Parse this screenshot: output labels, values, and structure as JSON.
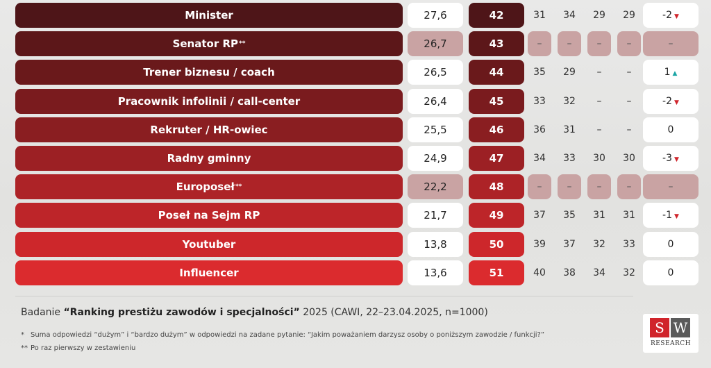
{
  "chart_data": {
    "type": "table",
    "rows": [
      {
        "name": "Minister",
        "sup": "",
        "score": "27,6",
        "rank": "42",
        "history": [
          "31",
          "34",
          "29",
          "29"
        ],
        "change": "-2",
        "trend": "down",
        "is_new": false,
        "color": "#4e1518"
      },
      {
        "name": "Senator RP",
        "sup": "**",
        "score": "26,7",
        "rank": "43",
        "history": [
          "–",
          "–",
          "–",
          "–"
        ],
        "change": "–",
        "trend": "",
        "is_new": true,
        "color": "#5c1719"
      },
      {
        "name": "Trener biznesu / coach",
        "sup": "",
        "score": "26,5",
        "rank": "44",
        "history": [
          "35",
          "29",
          "–",
          "–"
        ],
        "change": "1",
        "trend": "up",
        "is_new": false,
        "color": "#6a191b"
      },
      {
        "name": "Pracownik infolinii / call-center",
        "sup": "",
        "score": "26,4",
        "rank": "45",
        "history": [
          "33",
          "32",
          "–",
          "–"
        ],
        "change": "-2",
        "trend": "down",
        "is_new": false,
        "color": "#7a1b1e"
      },
      {
        "name": "Rekruter / HR-owiec",
        "sup": "",
        "score": "25,5",
        "rank": "46",
        "history": [
          "36",
          "31",
          "–",
          "–"
        ],
        "change": "0",
        "trend": "",
        "is_new": false,
        "color": "#8a1e21"
      },
      {
        "name": "Radny gminny",
        "sup": "",
        "score": "24,9",
        "rank": "47",
        "history": [
          "34",
          "33",
          "30",
          "30"
        ],
        "change": "-3",
        "trend": "down",
        "is_new": false,
        "color": "#9c2024"
      },
      {
        "name": "Europoseł",
        "sup": "**",
        "score": "22,2",
        "rank": "48",
        "history": [
          "–",
          "–",
          "–",
          "–"
        ],
        "change": "–",
        "trend": "",
        "is_new": true,
        "color": "#ad2327"
      },
      {
        "name": "Poseł na Sejm RP",
        "sup": "",
        "score": "21,7",
        "rank": "49",
        "history": [
          "37",
          "35",
          "31",
          "31"
        ],
        "change": "-1",
        "trend": "down",
        "is_new": false,
        "color": "#bd2529"
      },
      {
        "name": "Youtuber",
        "sup": "",
        "score": "13,8",
        "rank": "50",
        "history": [
          "39",
          "37",
          "32",
          "33"
        ],
        "change": "0",
        "trend": "",
        "is_new": false,
        "color": "#cd272b"
      },
      {
        "name": "Influencer",
        "sup": "",
        "score": "13,6",
        "rank": "51",
        "history": [
          "40",
          "38",
          "34",
          "32"
        ],
        "change": "0",
        "trend": "",
        "is_new": false,
        "color": "#db2b2e"
      }
    ]
  },
  "survey": {
    "prefix": "Badanie ",
    "title": "“Ranking prestiżu zawodów i specjalności”",
    "suffix": " 2025 (CAWI, 22–23.04.2025, n=1000)"
  },
  "footnotes": [
    {
      "mark": "*",
      "text": "Suma odpowiedzi “dużym” i “bardzo dużym” w odpowiedzi na zadane pytanie: “Jakim poważaniem darzysz osoby o poniższym zawodzie / funkcji?”"
    },
    {
      "mark": "**",
      "text": "Po raz pierwszy w zestawieniu"
    }
  ],
  "logo": {
    "s": "S",
    "w": "W",
    "sub": "RESEARCH"
  },
  "arrows": {
    "down": "▼",
    "up": "▲"
  }
}
